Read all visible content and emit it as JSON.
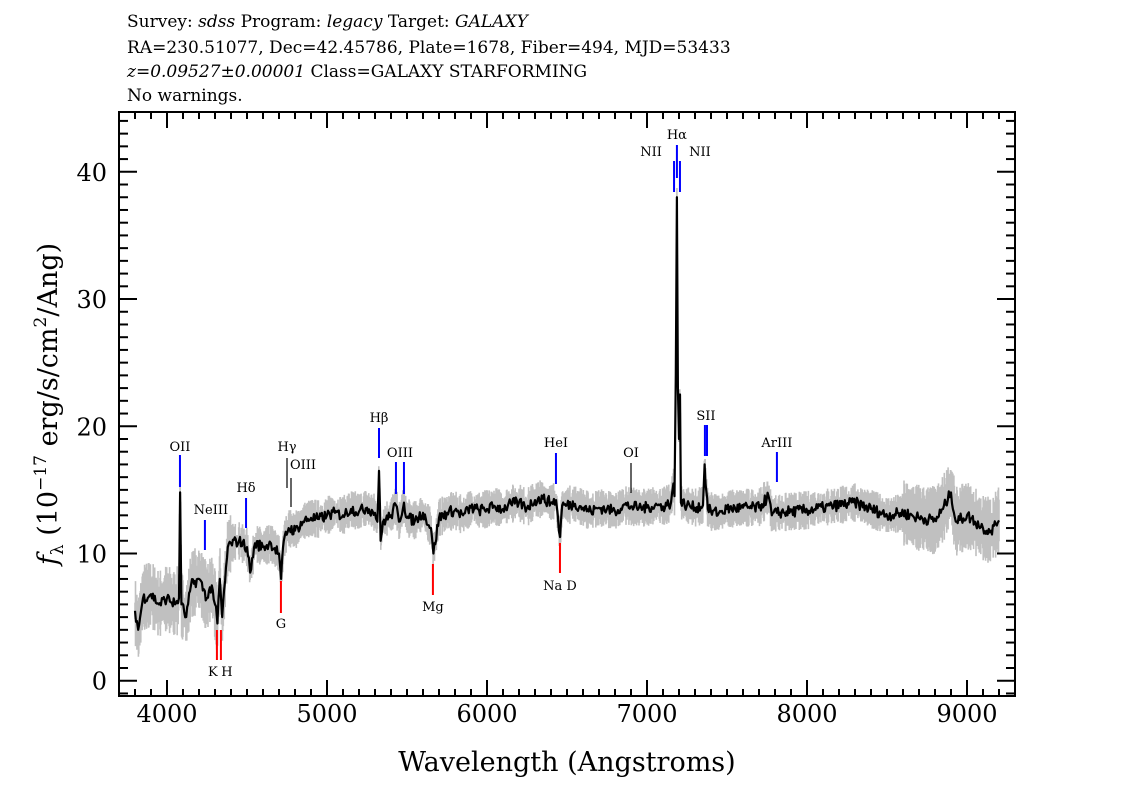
{
  "header": {
    "line1": {
      "survey_label": "Survey:",
      "survey": "sdss",
      "program_label": "Program:",
      "program": "legacy",
      "target_label": "Target:",
      "target": "GALAXY"
    },
    "line2": "RA=230.51077, Dec=42.45786, Plate=1678, Fiber=494, MJD=53433",
    "line3": {
      "z": "z=0.09527±0.00001",
      "class": "Class=GALAXY STARFORMING"
    },
    "line4": "No warnings."
  },
  "chart_data": {
    "type": "line",
    "xlabel": "Wavelength (Angstroms)",
    "ylabel": "fλ (10⁻¹⁷ erg/s/cm²/Ang)",
    "ylabel_parts": {
      "f": "f",
      "sub": "λ",
      "pre": " (10",
      "exp": "−17",
      "mid": " erg/s/cm",
      "exp2": "2",
      "post": "/Ang)"
    },
    "xlim": [
      3700,
      9300
    ],
    "ylim": [
      -1.2,
      44.7
    ],
    "x_ticks": [
      4000,
      5000,
      6000,
      7000,
      8000,
      9000
    ],
    "y_ticks": [
      0,
      10,
      20,
      30,
      40
    ],
    "x_minor_step": 100,
    "y_minor_step": 1,
    "grid": false,
    "colors": {
      "flux": "#000000",
      "noise": "#c0c0c0",
      "emission": "#0000ff",
      "absorption": "#ff0000",
      "sky": "#000000"
    },
    "series": [
      {
        "role": "flux",
        "points": [
          [
            3800,
            5.5
          ],
          [
            3820,
            4
          ],
          [
            3850,
            6.5
          ],
          [
            3900,
            6.8
          ],
          [
            3950,
            6
          ],
          [
            4000,
            6.5
          ],
          [
            4050,
            6
          ],
          [
            4075,
            6.5
          ],
          [
            4082,
            14.8
          ],
          [
            4090,
            6
          ],
          [
            4120,
            5
          ],
          [
            4150,
            7.5
          ],
          [
            4200,
            8
          ],
          [
            4250,
            6.5
          ],
          [
            4280,
            7.5
          ],
          [
            4300,
            6
          ],
          [
            4315,
            4.5
          ],
          [
            4330,
            8
          ],
          [
            4345,
            5
          ],
          [
            4380,
            10.5
          ],
          [
            4400,
            10.8
          ],
          [
            4450,
            11
          ],
          [
            4500,
            10.5
          ],
          [
            4520,
            8.5
          ],
          [
            4550,
            10.8
          ],
          [
            4600,
            10.5
          ],
          [
            4650,
            10.8
          ],
          [
            4700,
            10
          ],
          [
            4713,
            8
          ],
          [
            4730,
            11
          ],
          [
            4760,
            12
          ],
          [
            4800,
            11.8
          ],
          [
            4850,
            12.5
          ],
          [
            4900,
            12.8
          ],
          [
            4950,
            12.7
          ],
          [
            5000,
            13
          ],
          [
            5050,
            13.2
          ],
          [
            5100,
            13
          ],
          [
            5150,
            13.5
          ],
          [
            5200,
            13.3
          ],
          [
            5250,
            13.6
          ],
          [
            5300,
            13.2
          ],
          [
            5315,
            12.5
          ],
          [
            5325,
            16.5
          ],
          [
            5335,
            11
          ],
          [
            5350,
            12.5
          ],
          [
            5400,
            13
          ],
          [
            5431,
            13.8
          ],
          [
            5450,
            12.5
          ],
          [
            5481,
            14
          ],
          [
            5500,
            12.8
          ],
          [
            5550,
            12.6
          ],
          [
            5600,
            13.2
          ],
          [
            5650,
            12
          ],
          [
            5665,
            10
          ],
          [
            5700,
            12.8
          ],
          [
            5750,
            13.2
          ],
          [
            5800,
            13.4
          ],
          [
            5850,
            13
          ],
          [
            5900,
            13.6
          ],
          [
            5950,
            13.4
          ],
          [
            6000,
            13.5
          ],
          [
            6050,
            13.7
          ],
          [
            6100,
            13.5
          ],
          [
            6150,
            13.9
          ],
          [
            6200,
            14
          ],
          [
            6250,
            13.6
          ],
          [
            6300,
            14.2
          ],
          [
            6350,
            14.3
          ],
          [
            6400,
            14
          ],
          [
            6431,
            14.2
          ],
          [
            6456,
            11.3
          ],
          [
            6470,
            13.8
          ],
          [
            6500,
            13.8
          ],
          [
            6550,
            13.9
          ],
          [
            6600,
            13.6
          ],
          [
            6650,
            13.3
          ],
          [
            6700,
            13.6
          ],
          [
            6750,
            13.5
          ],
          [
            6800,
            13.3
          ],
          [
            6850,
            13.8
          ],
          [
            6900,
            13.7
          ],
          [
            6950,
            13.6
          ],
          [
            7000,
            13.6
          ],
          [
            7050,
            13.8
          ],
          [
            7100,
            13.7
          ],
          [
            7150,
            14
          ],
          [
            7165,
            15.5
          ],
          [
            7172,
            14.5
          ],
          [
            7180,
            24
          ],
          [
            7187,
            38
          ],
          [
            7193,
            23
          ],
          [
            7200,
            19
          ],
          [
            7206,
            22.5
          ],
          [
            7212,
            14
          ],
          [
            7250,
            13.8
          ],
          [
            7300,
            13.6
          ],
          [
            7350,
            13.8
          ],
          [
            7360,
            17
          ],
          [
            7370,
            15
          ],
          [
            7380,
            13.5
          ],
          [
            7400,
            13.3
          ],
          [
            7450,
            13.2
          ],
          [
            7500,
            13.5
          ],
          [
            7600,
            13.6
          ],
          [
            7700,
            13.6
          ],
          [
            7760,
            14.5
          ],
          [
            7780,
            13
          ],
          [
            7812,
            13.2
          ],
          [
            7900,
            13.3
          ],
          [
            8000,
            13.4
          ],
          [
            8100,
            13.6
          ],
          [
            8200,
            13.8
          ],
          [
            8300,
            14
          ],
          [
            8400,
            13.5
          ],
          [
            8500,
            13
          ],
          [
            8600,
            13.2
          ],
          [
            8700,
            12.8
          ],
          [
            8800,
            12.6
          ],
          [
            8850,
            13.5
          ],
          [
            8900,
            14.8
          ],
          [
            8930,
            12.5
          ],
          [
            9000,
            13
          ],
          [
            9050,
            12.5
          ],
          [
            9100,
            12
          ],
          [
            9150,
            11.8
          ],
          [
            9200,
            12.6
          ]
        ]
      }
    ],
    "line_ids": [
      {
        "name": "OII",
        "wavelength": 4081,
        "kind": "emission"
      },
      {
        "name": "NeIII",
        "wavelength": 4237,
        "kind": "emission"
      },
      {
        "name": "Hδ",
        "wavelength": 4494,
        "kind": "emission"
      },
      {
        "name": "Hγ",
        "wavelength": 4750,
        "kind": "sky"
      },
      {
        "name": "OIII",
        "wavelength": 4775,
        "kind": "sky"
      },
      {
        "name": "Hβ",
        "wavelength": 5325,
        "kind": "emission"
      },
      {
        "name": "OIII",
        "wavelength": 5431,
        "kind": "emission",
        "pair": 5481
      },
      {
        "name": "HeI",
        "wavelength": 6431,
        "kind": "emission"
      },
      {
        "name": "OI",
        "wavelength": 6900,
        "kind": "sky"
      },
      {
        "name": "NII",
        "wavelength": 7169,
        "kind": "emission"
      },
      {
        "name": "Hα",
        "wavelength": 7187,
        "kind": "emission"
      },
      {
        "name": "NII",
        "wavelength": 7206,
        "kind": "emission"
      },
      {
        "name": "SII",
        "wavelength": 7362,
        "kind": "emission",
        "pair": 7375
      },
      {
        "name": "ArIII",
        "wavelength": 7812,
        "kind": "emission"
      },
      {
        "name": "K",
        "wavelength": 4312,
        "kind": "absorption"
      },
      {
        "name": "H",
        "wavelength": 4337,
        "kind": "absorption"
      },
      {
        "name": "G",
        "wavelength": 4712,
        "kind": "absorption"
      },
      {
        "name": "Mg",
        "wavelength": 5662,
        "kind": "absorption"
      },
      {
        "name": "Na D",
        "wavelength": 6456,
        "kind": "absorption"
      }
    ]
  }
}
